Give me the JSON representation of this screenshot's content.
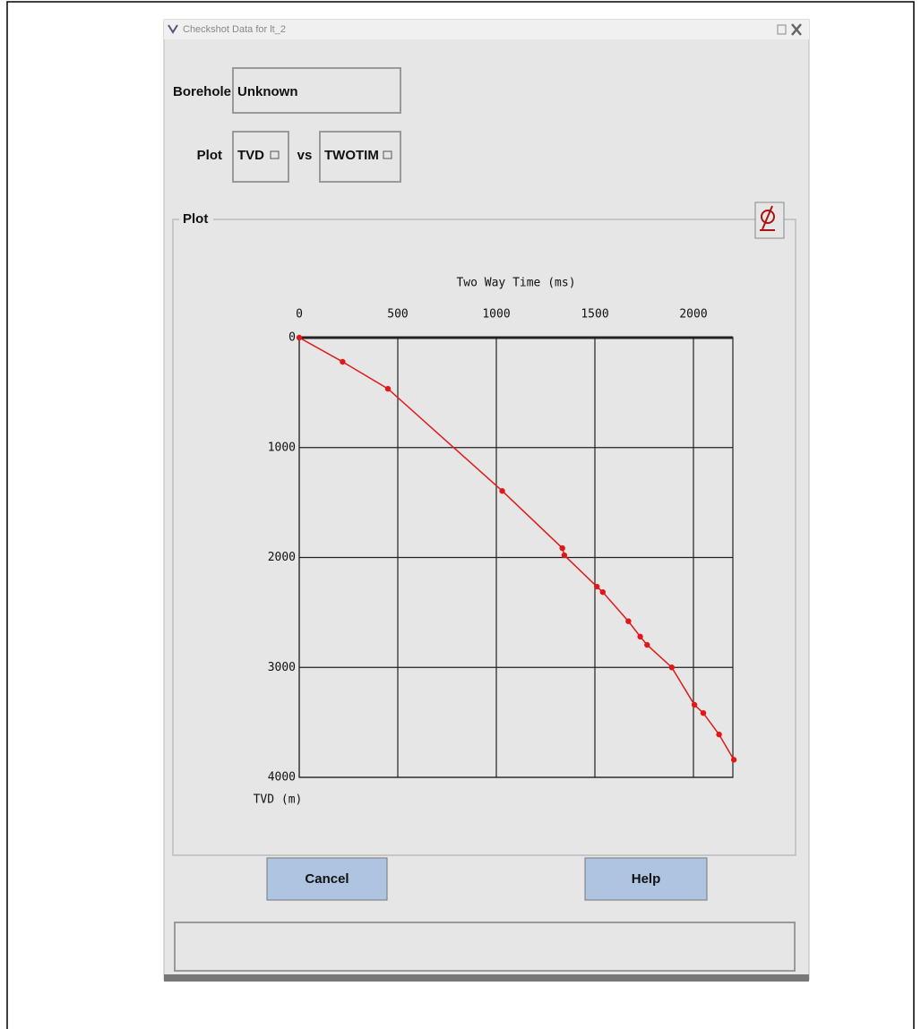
{
  "window": {
    "title": "Checkshot Data for lt_2"
  },
  "form": {
    "borehole_label": "Borehole",
    "borehole_value": "Unknown",
    "plot_label": "Plot",
    "y_choice": "TVD",
    "vs": "vs",
    "x_choice": "TWOTIM"
  },
  "group": {
    "title": "Plot"
  },
  "chart_data": {
    "type": "line",
    "x_label": "Two Way Time (ms)",
    "y_label": "TVD (m)",
    "x": [
      0,
      220,
      450,
      1030,
      1335,
      1345,
      1510,
      1540,
      1670,
      1730,
      1765,
      1890,
      2005,
      2050,
      2130,
      2205
    ],
    "series": [
      {
        "color": "#e01818",
        "values": [
          0,
          220,
          465,
          1395,
          1915,
          1980,
          2265,
          2315,
          2580,
          2720,
          2795,
          3000,
          3340,
          3415,
          3610,
          3840
        ]
      }
    ],
    "markers": true,
    "xlim": [
      0,
      2200
    ],
    "xticks": [
      0,
      500,
      1000,
      1500,
      2000
    ],
    "ylim": [
      0,
      4000
    ],
    "yticks": [
      0,
      1000,
      2000,
      3000,
      4000
    ],
    "y_inverted": true,
    "x_axis_position": "top",
    "grid": true
  },
  "buttons": [
    "Cancel",
    "Help"
  ]
}
